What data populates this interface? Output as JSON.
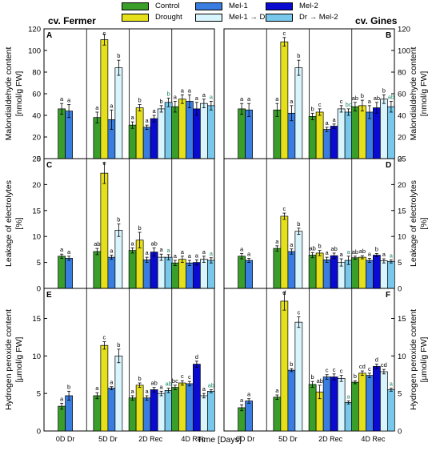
{
  "colors": {
    "Control": "#3a9e2a",
    "Drought": "#e6e01a",
    "Mel-1": "#3a7de0",
    "Mel-2": "#0a0ad0",
    "Mel-1→Dr": "#d8f4fc",
    "Dr→Mel-2": "#78c8ec"
  },
  "legend": [
    {
      "label": "Control",
      "color": "#3a9e2a"
    },
    {
      "label": "Drought",
      "color": "#e6e01a"
    },
    {
      "label": "Mel-1",
      "color": "#3a7de0"
    },
    {
      "label": "Mel-1 → Dr",
      "color": "#d8f4fc"
    },
    {
      "label": "Mel-2",
      "color": "#0a0ad0"
    },
    {
      "label": "Dr → Mel-2",
      "color": "#78c8ec"
    }
  ],
  "cultivars": {
    "left": "cv. Fermer",
    "right": "cv. Gines"
  },
  "xlabel": "Time [Days]",
  "chart_data": [
    {
      "type": "bar",
      "panel": "A",
      "cultivar": "cv. Fermer",
      "ylabel": "Malondialdehyde content [nmol/g FW]",
      "ylim": [
        0,
        120
      ],
      "yticks": [
        0,
        20,
        40,
        60,
        80,
        100,
        120
      ],
      "categories": [
        "0D Dr",
        "5D Dr",
        "2D Rec",
        "4D Rec"
      ],
      "groups": [
        {
          "category": "0D Dr",
          "bars": [
            {
              "s": "Control",
              "v": 46,
              "e": 5,
              "l": "a"
            },
            {
              "s": "Mel-1",
              "v": 44,
              "e": 6,
              "l": "a"
            }
          ]
        },
        {
          "category": "5D Dr",
          "bars": [
            {
              "s": "Control",
              "v": 38,
              "e": 5,
              "l": "a"
            },
            {
              "s": "Drought",
              "v": 110,
              "e": 5,
              "l": "c"
            },
            {
              "s": "Mel-1",
              "v": 36,
              "e": 9,
              "l": "a"
            },
            {
              "s": "Mel-1→Dr",
              "v": 84,
              "e": 7,
              "l": "b"
            }
          ]
        },
        {
          "category": "2D Rec",
          "bars": [
            {
              "s": "Control",
              "v": 31,
              "e": 3,
              "l": "a"
            },
            {
              "s": "Drought",
              "v": 47,
              "e": 3,
              "l": "b"
            },
            {
              "s": "Mel-1",
              "v": 29,
              "e": 2,
              "l": "a"
            },
            {
              "s": "Mel-1→Dr",
              "v": 46,
              "e": 3,
              "l": "b"
            },
            {
              "s": "Mel-2",
              "v": 37,
              "e": 3,
              "l": "a"
            },
            {
              "s": "Dr→Mel-2",
              "v": 52,
              "e": 4,
              "l": "b"
            }
          ]
        },
        {
          "category": "4D Rec",
          "bars": [
            {
              "s": "Control",
              "v": 48,
              "e": 5,
              "l": "a"
            },
            {
              "s": "Drought",
              "v": 55,
              "e": 4,
              "l": "a"
            },
            {
              "s": "Mel-1",
              "v": 53,
              "e": 6,
              "l": "a"
            },
            {
              "s": "Mel-1→Dr",
              "v": 51,
              "e": 4,
              "l": "a"
            },
            {
              "s": "Mel-2",
              "v": 46,
              "e": 6,
              "l": "a"
            },
            {
              "s": "Dr→Mel-2",
              "v": 49,
              "e": 4,
              "l": "a"
            }
          ]
        }
      ]
    },
    {
      "type": "bar",
      "panel": "B",
      "cultivar": "cv. Gines",
      "ylabel": "Malondialdehyde content [nmol/g FW]",
      "ylim": [
        0,
        120
      ],
      "yticks": [
        0,
        20,
        40,
        60,
        80,
        100,
        120
      ],
      "categories": [
        "0D Dr",
        "5D Dr",
        "2D Rec",
        "4D Rec"
      ],
      "groups": [
        {
          "category": "0D Dr",
          "bars": [
            {
              "s": "Control",
              "v": 46,
              "e": 5,
              "l": "a"
            },
            {
              "s": "Mel-1",
              "v": 45,
              "e": 6,
              "l": "a"
            }
          ]
        },
        {
          "category": "5D Dr",
          "bars": [
            {
              "s": "Control",
              "v": 45,
              "e": 6,
              "l": "a"
            },
            {
              "s": "Drought",
              "v": 108,
              "e": 4,
              "l": "c"
            },
            {
              "s": "Mel-1",
              "v": 42,
              "e": 7,
              "l": "a"
            },
            {
              "s": "Mel-1→Dr",
              "v": 84,
              "e": 7,
              "l": "b"
            }
          ]
        },
        {
          "category": "2D Rec",
          "bars": [
            {
              "s": "Control",
              "v": 39,
              "e": 3,
              "l": "b"
            },
            {
              "s": "Drought",
              "v": 43,
              "e": 3,
              "l": "c"
            },
            {
              "s": "Mel-1",
              "v": 27,
              "e": 2,
              "l": "a"
            },
            {
              "s": "Mel-1→Dr",
              "v": 46,
              "e": 3,
              "l": "c"
            },
            {
              "s": "Mel-2",
              "v": 30,
              "e": 2,
              "l": "a"
            },
            {
              "s": "Dr→Mel-2",
              "v": 43,
              "e": 3,
              "l": "bc"
            }
          ]
        },
        {
          "category": "4D Rec",
          "bars": [
            {
              "s": "Control",
              "v": 48,
              "e": 4,
              "l": "ab"
            },
            {
              "s": "Drought",
              "v": 49,
              "e": 5,
              "l": "b"
            },
            {
              "s": "Mel-1",
              "v": 43,
              "e": 6,
              "l": "a"
            },
            {
              "s": "Mel-1→Dr",
              "v": 55,
              "e": 4,
              "l": "b"
            },
            {
              "s": "Mel-2",
              "v": 47,
              "e": 5,
              "l": "ab"
            },
            {
              "s": "Dr→Mel-2",
              "v": 48,
              "e": 5,
              "l": "ab"
            }
          ]
        }
      ]
    },
    {
      "type": "bar",
      "panel": "C",
      "cultivar": "cv. Fermer",
      "ylabel": "Leakage of electrolytes [%]",
      "ylim": [
        0,
        25
      ],
      "yticks": [
        0,
        5,
        10,
        15,
        20,
        25
      ],
      "categories": [
        "0D Dr",
        "5D Dr",
        "2D Rec",
        "4D Rec"
      ],
      "groups": [
        {
          "category": "0D Dr",
          "bars": [
            {
              "s": "Control",
              "v": 6.2,
              "e": 0.4,
              "l": "a"
            },
            {
              "s": "Mel-1",
              "v": 5.8,
              "e": 0.4,
              "l": "a"
            }
          ]
        },
        {
          "category": "5D Dr",
          "bars": [
            {
              "s": "Control",
              "v": 7.1,
              "e": 0.6,
              "l": "ab"
            },
            {
              "s": "Drought",
              "v": 22.2,
              "e": 2.0,
              "l": "c"
            },
            {
              "s": "Mel-1",
              "v": 6.0,
              "e": 0.4,
              "l": "a"
            },
            {
              "s": "Mel-1→Dr",
              "v": 11.2,
              "e": 1.2,
              "l": "b"
            }
          ]
        },
        {
          "category": "2D Rec",
          "bars": [
            {
              "s": "Control",
              "v": 7.3,
              "e": 0.5,
              "l": "a"
            },
            {
              "s": "Drought",
              "v": 9.3,
              "e": 1.5,
              "l": "b"
            },
            {
              "s": "Mel-1",
              "v": 5.5,
              "e": 0.5,
              "l": "a"
            },
            {
              "s": "Mel-1→Dr",
              "v": 6.0,
              "e": 0.6,
              "l": "a"
            },
            {
              "s": "Mel-2",
              "v": 7.0,
              "e": 0.8,
              "l": "ab"
            },
            {
              "s": "Dr→Mel-2",
              "v": 6.0,
              "e": 0.5,
              "l": "a"
            }
          ]
        },
        {
          "category": "4D Rec",
          "bars": [
            {
              "s": "Control",
              "v": 4.9,
              "e": 0.5,
              "l": "a"
            },
            {
              "s": "Drought",
              "v": 5.6,
              "e": 0.6,
              "l": "a"
            },
            {
              "s": "Mel-1",
              "v": 4.9,
              "e": 0.5,
              "l": "a"
            },
            {
              "s": "Mel-1→Dr",
              "v": 5.6,
              "e": 0.6,
              "l": "a"
            },
            {
              "s": "Mel-2",
              "v": 5.0,
              "e": 0.5,
              "l": "a"
            },
            {
              "s": "Dr→Mel-2",
              "v": 5.4,
              "e": 0.5,
              "l": "a"
            }
          ]
        }
      ]
    },
    {
      "type": "bar",
      "panel": "D",
      "cultivar": "cv. Gines",
      "ylabel": "Leakage of electrolytes [%]",
      "ylim": [
        0,
        25
      ],
      "yticks": [
        0,
        5,
        10,
        15,
        20,
        25
      ],
      "categories": [
        "0D Dr",
        "5D Dr",
        "2D Rec",
        "4D Rec"
      ],
      "groups": [
        {
          "category": "0D Dr",
          "bars": [
            {
              "s": "Control",
              "v": 6.2,
              "e": 0.5,
              "l": "a"
            },
            {
              "s": "Mel-1",
              "v": 5.4,
              "e": 0.4,
              "l": "a"
            }
          ]
        },
        {
          "category": "5D Dr",
          "bars": [
            {
              "s": "Control",
              "v": 7.7,
              "e": 0.5,
              "l": "a"
            },
            {
              "s": "Drought",
              "v": 13.9,
              "e": 0.6,
              "l": "c"
            },
            {
              "s": "Mel-1",
              "v": 7.1,
              "e": 0.5,
              "l": "a"
            },
            {
              "s": "Mel-1→Dr",
              "v": 11.0,
              "e": 0.6,
              "l": "b"
            }
          ]
        },
        {
          "category": "2D Rec",
          "bars": [
            {
              "s": "Control",
              "v": 6.4,
              "e": 0.5,
              "l": "ab"
            },
            {
              "s": "Drought",
              "v": 6.8,
              "e": 0.5,
              "l": "b"
            },
            {
              "s": "Mel-1",
              "v": 5.5,
              "e": 0.5,
              "l": "a"
            },
            {
              "s": "Mel-1→Dr",
              "v": 5.0,
              "e": 0.7,
              "l": "a"
            },
            {
              "s": "Mel-2",
              "v": 6.3,
              "e": 0.5,
              "l": "ab"
            },
            {
              "s": "Dr→Mel-2",
              "v": 5.4,
              "e": 0.8,
              "l": "a"
            }
          ]
        },
        {
          "category": "4D Rec",
          "bars": [
            {
              "s": "Control",
              "v": 5.9,
              "e": 0.3,
              "l": "ab"
            },
            {
              "s": "Drought",
              "v": 6.0,
              "e": 0.3,
              "l": "ab"
            },
            {
              "s": "Mel-1",
              "v": 5.4,
              "e": 0.4,
              "l": "a"
            },
            {
              "s": "Mel-1→Dr",
              "v": 5.3,
              "e": 0.4,
              "l": "a"
            },
            {
              "s": "Mel-2",
              "v": 6.4,
              "e": 0.3,
              "l": "b"
            },
            {
              "s": "Dr→Mel-2",
              "v": 5.2,
              "e": 0.3,
              "l": "a"
            }
          ]
        }
      ]
    },
    {
      "type": "bar",
      "panel": "E",
      "cultivar": "cv. Fermer",
      "ylabel": "Hydrogen peroxide content [µmol/g FW]",
      "ylim": [
        0,
        19
      ],
      "yticks": [
        0,
        5,
        10,
        15
      ],
      "categories": [
        "0D Dr",
        "5D Dr",
        "2D Rec",
        "4D Rec"
      ],
      "groups": [
        {
          "category": "0D Dr",
          "bars": [
            {
              "s": "Control",
              "v": 3.3,
              "e": 0.4,
              "l": "a"
            },
            {
              "s": "Mel-1",
              "v": 4.7,
              "e": 0.6,
              "l": "b"
            }
          ]
        },
        {
          "category": "5D Dr",
          "bars": [
            {
              "s": "Control",
              "v": 4.7,
              "e": 0.4,
              "l": "a"
            },
            {
              "s": "Drought",
              "v": 11.4,
              "e": 0.5,
              "l": "c"
            },
            {
              "s": "Mel-1",
              "v": 5.7,
              "e": 0.2,
              "l": "a"
            },
            {
              "s": "Mel-1→Dr",
              "v": 10.0,
              "e": 0.9,
              "l": "b"
            }
          ]
        },
        {
          "category": "2D Rec",
          "bars": [
            {
              "s": "Control",
              "v": 4.4,
              "e": 0.3,
              "l": "a"
            },
            {
              "s": "Drought",
              "v": 6.1,
              "e": 0.3,
              "l": "b"
            },
            {
              "s": "Mel-1",
              "v": 4.4,
              "e": 0.3,
              "l": "a"
            },
            {
              "s": "Mel-1→Dr",
              "v": 5.0,
              "e": 0.3,
              "l": "a"
            },
            {
              "s": "Mel-2",
              "v": 5.5,
              "e": 0.3,
              "l": "ab"
            },
            {
              "s": "Dr→Mel-2",
              "v": 5.4,
              "e": 0.3,
              "l": "ab"
            }
          ]
        },
        {
          "category": "4D Rec",
          "bars": [
            {
              "s": "Control",
              "v": 5.8,
              "e": 0.3,
              "l": "bc"
            },
            {
              "s": "Drought",
              "v": 6.4,
              "e": 0.3,
              "l": "c"
            },
            {
              "s": "Mel-1",
              "v": 6.3,
              "e": 0.3,
              "l": "c"
            },
            {
              "s": "Mel-1→Dr",
              "v": 4.7,
              "e": 0.3,
              "l": "a"
            },
            {
              "s": "Mel-2",
              "v": 8.9,
              "e": 0.4,
              "l": "d"
            },
            {
              "s": "Dr→Mel-2",
              "v": 5.3,
              "e": 0.2,
              "l": "ab"
            }
          ]
        }
      ]
    },
    {
      "type": "bar",
      "panel": "F",
      "cultivar": "cv. Gines",
      "ylabel": "Hydrogen peroxide content [µmol/g FW]",
      "ylim": [
        0,
        19
      ],
      "yticks": [
        0,
        5,
        10,
        15
      ],
      "categories": [
        "0D Dr",
        "5D Dr",
        "2D Rec",
        "4D Rec"
      ],
      "groups": [
        {
          "category": "0D Dr",
          "bars": [
            {
              "s": "Control",
              "v": 3.1,
              "e": 0.4,
              "l": "a"
            },
            {
              "s": "Mel-1",
              "v": 4.0,
              "e": 0.3,
              "l": "a"
            }
          ]
        },
        {
          "category": "5D Dr",
          "bars": [
            {
              "s": "Control",
              "v": 4.5,
              "e": 0.3,
              "l": "a"
            },
            {
              "s": "Drought",
              "v": 17.3,
              "e": 1.2,
              "l": "d"
            },
            {
              "s": "Mel-1",
              "v": 8.1,
              "e": 0.2,
              "l": "b"
            },
            {
              "s": "Mel-1→Dr",
              "v": 14.5,
              "e": 0.7,
              "l": "c"
            }
          ]
        },
        {
          "category": "2D Rec",
          "bars": [
            {
              "s": "Control",
              "v": 6.2,
              "e": 0.4,
              "l": "b"
            },
            {
              "s": "Drought",
              "v": 5.2,
              "e": 0.9,
              "l": "ab"
            },
            {
              "s": "Mel-1",
              "v": 7.2,
              "e": 0.3,
              "l": "c"
            },
            {
              "s": "Mel-1→Dr",
              "v": 7.0,
              "e": 0.4,
              "l": "c"
            },
            {
              "s": "Mel-2",
              "v": 7.2,
              "e": 0.4,
              "l": "c"
            },
            {
              "s": "Dr→Mel-2",
              "v": 3.8,
              "e": 0.2,
              "l": "a"
            }
          ]
        },
        {
          "category": "4D Rec",
          "bars": [
            {
              "s": "Control",
              "v": 6.5,
              "e": 0.2,
              "l": "b"
            },
            {
              "s": "Drought",
              "v": 7.7,
              "e": 0.3,
              "l": "cd"
            },
            {
              "s": "Mel-1",
              "v": 7.4,
              "e": 0.3,
              "l": "c"
            },
            {
              "s": "Mel-1→Dr",
              "v": 7.9,
              "e": 0.3,
              "l": "cd"
            },
            {
              "s": "Mel-2",
              "v": 8.6,
              "e": 0.3,
              "l": "d"
            },
            {
              "s": "Dr→Mel-2",
              "v": 5.5,
              "e": 0.2,
              "l": "a"
            }
          ]
        }
      ]
    }
  ]
}
